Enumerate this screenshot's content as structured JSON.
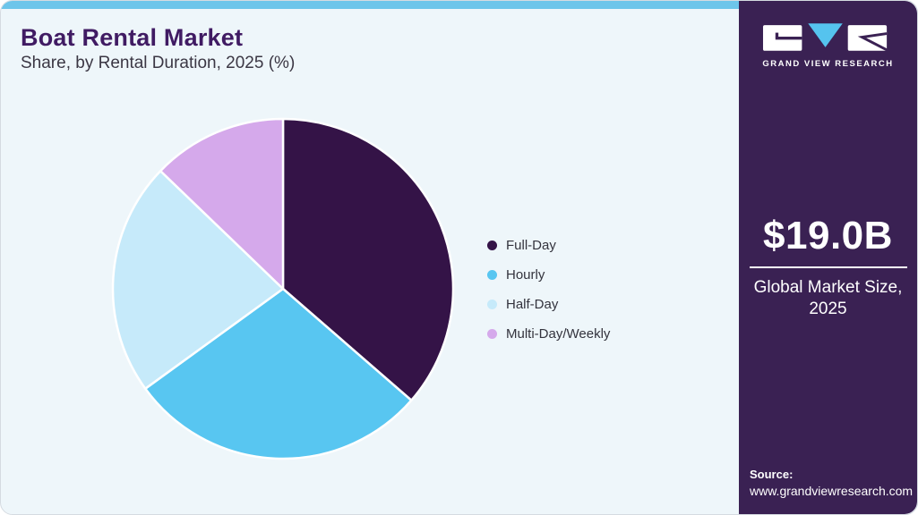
{
  "header": {
    "title": "Boat Rental Market",
    "subtitle": "Share, by Rental Duration, 2025 (%)"
  },
  "chart_data": {
    "type": "pie",
    "title": "Boat Rental Market Share, by Rental Duration, 2025 (%)",
    "unit": "%",
    "start_angle_deg": 0,
    "direction": "clockwise",
    "legend_position": "right-middle",
    "slice_labels_shown": false,
    "segments": [
      {
        "label": "Full-Day",
        "value": 36.4,
        "color": "#341347"
      },
      {
        "label": "Hourly",
        "value": 28.6,
        "color": "#58c6f1"
      },
      {
        "label": "Half-Day",
        "value": 22.2,
        "color": "#c6eafa"
      },
      {
        "label": "Multi-Day/Weekly",
        "value": 12.8,
        "color": "#d5a9eb"
      }
    ]
  },
  "sidebar": {
    "brand": {
      "name": "GRAND VIEW RESEARCH"
    },
    "stat": {
      "value": "$19.0B",
      "label_line1": "Global Market Size,",
      "label_line2": "2025"
    },
    "source": {
      "label": "Source:",
      "url": "www.grandviewresearch.com"
    }
  },
  "colors": {
    "topbar_accent": "#6dc5ea",
    "card_background": "#eef6fa",
    "sidebar_background": "#3a2153",
    "title_text": "#401b63",
    "subtitle_text": "#3b3744",
    "legend_text": "#33333d",
    "logo_triangle": "#55c3ee"
  }
}
